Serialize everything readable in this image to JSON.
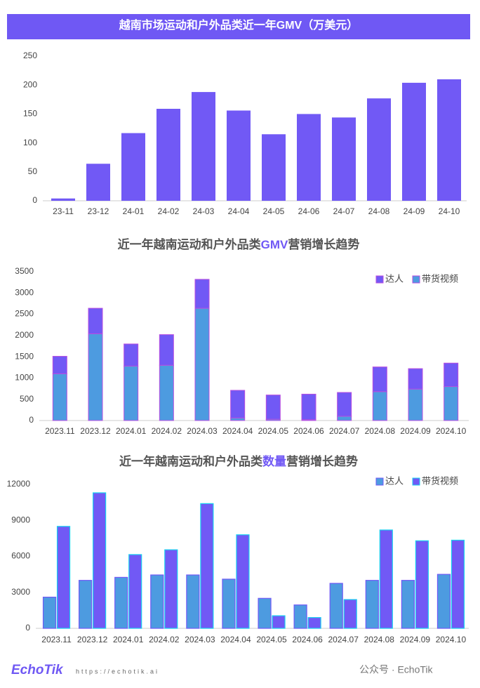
{
  "chart_data": [
    {
      "type": "bar",
      "title": "越南市场运动和户外品类近一年GMV（万美元）",
      "title_bg": "#6f58f4",
      "categories": [
        "23-11",
        "23-12",
        "24-01",
        "24-02",
        "24-03",
        "24-04",
        "24-05",
        "24-06",
        "24-07",
        "24-08",
        "24-09",
        "24-10"
      ],
      "values": [
        4,
        64,
        117,
        159,
        188,
        156,
        115,
        150,
        144,
        177,
        204,
        210
      ],
      "color": "#7159f5",
      "ylim": [
        0,
        250
      ],
      "yticks": [
        0,
        50,
        100,
        150,
        200,
        250
      ]
    },
    {
      "type": "stacked_bar",
      "title": [
        "近一年越南运动和户外品类",
        "GMV",
        "营销增长趋势"
      ],
      "highlight_color": "#7159f5",
      "categories": [
        "2023.11",
        "2023.12",
        "2024.01",
        "2024.02",
        "2024.03",
        "2024.04",
        "2024.05",
        "2024.06",
        "2024.07",
        "2024.08",
        "2024.09",
        "2024.10"
      ],
      "series": [
        {
          "name": "带货视频",
          "color": "#4d9be0",
          "border": "#b84ee0",
          "values": [
            1100,
            2040,
            1280,
            1300,
            2640,
            60,
            30,
            20,
            100,
            680,
            740,
            800
          ]
        },
        {
          "name": "达人",
          "color": "#7159f5",
          "border": "#b84ee0",
          "values": [
            410,
            600,
            520,
            720,
            680,
            650,
            570,
            600,
            560,
            580,
            480,
            550
          ]
        }
      ],
      "legend": "top-right",
      "ylim": [
        0,
        3500
      ],
      "yticks": [
        0,
        500,
        1000,
        1500,
        2000,
        2500,
        3000,
        3500
      ]
    },
    {
      "type": "grouped_bar",
      "title": [
        "近一年越南运动和户外品类",
        "数量",
        "营销增长趋势"
      ],
      "highlight_color": "#7159f5",
      "categories": [
        "2023.11",
        "2023.12",
        "2024.01",
        "2024.02",
        "2024.03",
        "2024.04",
        "2024.05",
        "2024.06",
        "2024.07",
        "2024.08",
        "2024.09",
        "2024.10"
      ],
      "series": [
        {
          "name": "达人",
          "color": "#4d9be0",
          "border": "#7159f5",
          "values": [
            2600,
            4000,
            4250,
            4450,
            4450,
            4100,
            2500,
            1950,
            3750,
            4000,
            4000,
            4500
          ]
        },
        {
          "name": "带货视频",
          "color": "#7159f5",
          "border": "#19d0f0",
          "values": [
            8500,
            11300,
            6150,
            6550,
            10400,
            7800,
            1050,
            900,
            2400,
            8200,
            7300,
            7350
          ]
        }
      ],
      "legend": "top-right",
      "ylim": [
        0,
        12000
      ],
      "yticks": [
        0,
        3000,
        6000,
        9000,
        12000
      ]
    }
  ],
  "footer": {
    "logo": "EchoTik",
    "url": "https://echotik.ai",
    "account": "公众号 · EchoTik"
  }
}
